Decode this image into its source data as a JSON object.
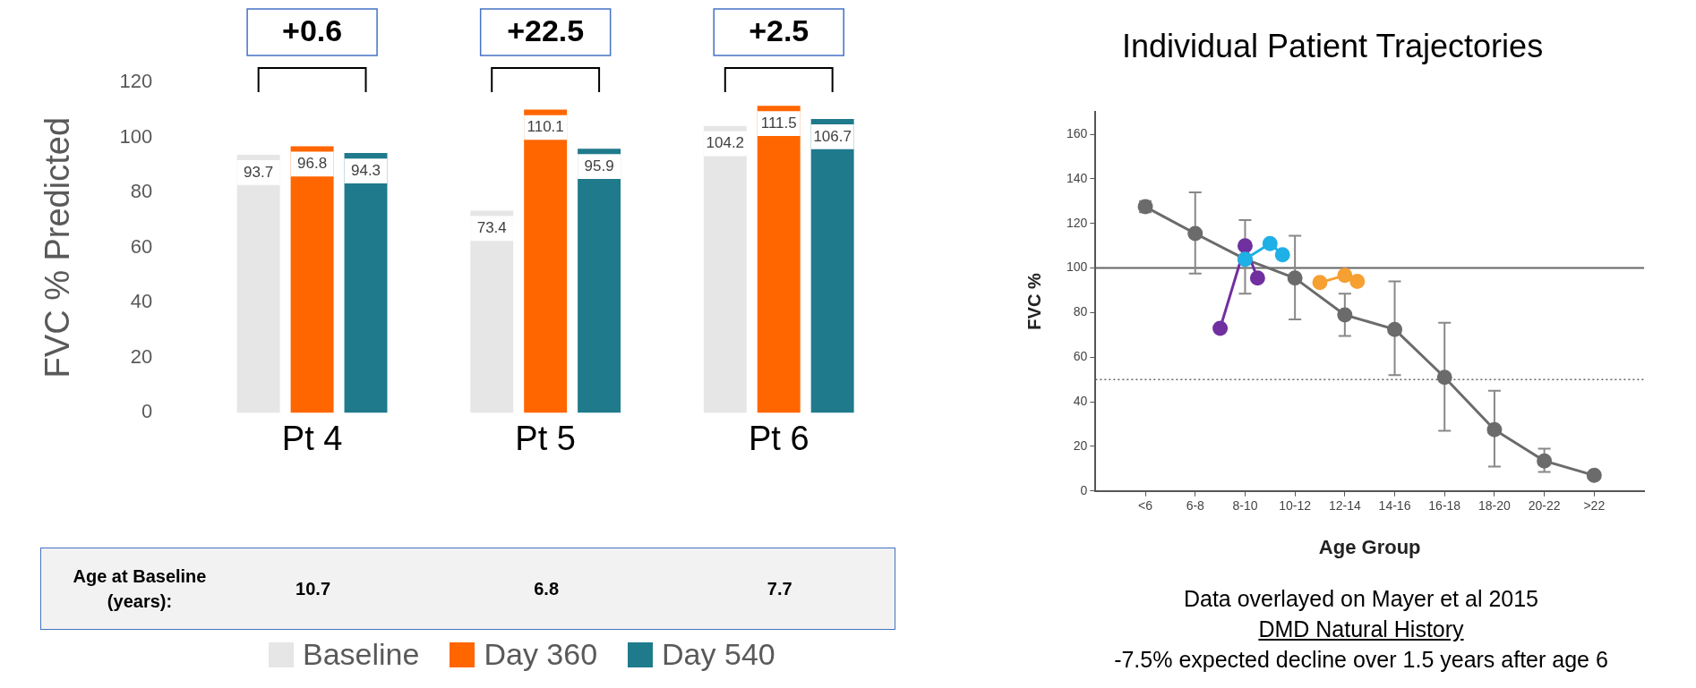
{
  "chart_data": [
    {
      "type": "bar",
      "ylabel": "FVC % Predicted",
      "categories": [
        "Pt 4",
        "Pt 5",
        "Pt 6"
      ],
      "series": [
        {
          "name": "Baseline",
          "color": "#e6e6e6",
          "values": [
            93.7,
            73.4,
            104.2
          ]
        },
        {
          "name": "Day 360",
          "color": "#ff6600",
          "values": [
            96.8,
            110.1,
            111.5
          ]
        },
        {
          "name": "Day 540",
          "color": "#1f7a8c",
          "values": [
            94.3,
            95.9,
            106.7
          ]
        }
      ],
      "ylim": [
        0,
        120
      ],
      "yticks": [
        0,
        20,
        40,
        60,
        80,
        100,
        120
      ],
      "grid": false,
      "legend": "bottom",
      "data_labels": true,
      "annotations": [
        "+0.6",
        "+22.5",
        "+2.5",
        "Age at Baseline (years):",
        "10.7",
        "6.8",
        "7.7"
      ]
    },
    {
      "type": "line",
      "title": "Individual Patient Trajectories",
      "xlabel": "Age Group",
      "ylabel": "FVC %",
      "categories": [
        null,
        null,
        null,
        null,
        "<6",
        null,
        null,
        null,
        "6-8",
        null,
        null,
        null,
        "8-10",
        null,
        null,
        null,
        "10-12",
        null,
        null,
        null,
        "12-14",
        null,
        null,
        null,
        "14-16",
        null,
        null,
        null,
        "16-18",
        null,
        null,
        null,
        "18-20",
        null,
        null,
        null,
        "20-22",
        null,
        null,
        null,
        ">22",
        null,
        null,
        null,
        null
      ],
      "series": [
        {
          "color": "#6b6b6b",
          "values": [
            null,
            null,
            null,
            null,
            127.5,
            null,
            null,
            null,
            115.5,
            null,
            null,
            null,
            104,
            null,
            null,
            null,
            95.5,
            null,
            null,
            null,
            79,
            null,
            null,
            null,
            72.5,
            null,
            null,
            null,
            51,
            null,
            null,
            null,
            27.5,
            null,
            null,
            null,
            13.5,
            null,
            null,
            null,
            7,
            null,
            null,
            null,
            null
          ],
          "errors": [
            null,
            null,
            null,
            null,
            [
              125,
              130
            ],
            null,
            null,
            null,
            [
              97.5,
              134
            ],
            null,
            null,
            null,
            [
              88.5,
              121.5
            ],
            null,
            null,
            null,
            [
              77,
              114.5
            ],
            null,
            null,
            null,
            [
              69.5,
              88.5
            ],
            null,
            null,
            null,
            [
              52,
              94
            ],
            null,
            null,
            null,
            [
              27,
              75.5
            ],
            null,
            null,
            null,
            [
              11,
              45
            ],
            null,
            null,
            null,
            [
              8.5,
              19
            ],
            null,
            null,
            null,
            null,
            null,
            null,
            null,
            null
          ]
        },
        {
          "color": "#7030a0",
          "values": [
            null,
            null,
            null,
            null,
            null,
            null,
            null,
            null,
            null,
            null,
            73,
            null,
            110,
            95.5,
            null,
            null,
            null,
            null,
            null,
            null,
            null,
            null,
            null,
            null,
            null,
            null,
            null,
            null,
            null,
            null,
            null,
            null,
            null,
            null,
            null,
            null,
            null,
            null,
            null,
            null,
            null,
            null,
            null,
            null,
            null
          ]
        },
        {
          "color": "#1fb0e6",
          "values": [
            null,
            null,
            null,
            null,
            null,
            null,
            null,
            null,
            null,
            null,
            null,
            null,
            104,
            null,
            111,
            106,
            null,
            null,
            null,
            null,
            null,
            null,
            null,
            null,
            null,
            null,
            null,
            null,
            null,
            null,
            null,
            null,
            null,
            null,
            null,
            null,
            null,
            null,
            null,
            null,
            null,
            null,
            null,
            null,
            null
          ]
        },
        {
          "color": "#f5a031",
          "values": [
            null,
            null,
            null,
            null,
            null,
            null,
            null,
            null,
            null,
            null,
            null,
            null,
            null,
            null,
            null,
            null,
            null,
            null,
            93.5,
            null,
            96.7,
            94,
            null,
            null,
            null,
            null,
            null,
            null,
            null,
            null,
            null,
            null,
            null,
            null,
            null,
            null,
            null,
            null,
            null,
            null,
            null,
            null,
            null,
            null,
            null
          ]
        }
      ],
      "ylim": [
        0,
        170
      ],
      "yticks": [
        0,
        20,
        40,
        60,
        80,
        100,
        120,
        140,
        160
      ],
      "grid": false,
      "legend": false,
      "marker": "circle",
      "line_style": "solid",
      "ref_lines": [
        {
          "axis": "y",
          "value": 100,
          "line_style": "solid"
        },
        {
          "axis": "y",
          "value": 50,
          "line_style": "dotted"
        }
      ],
      "annotations": [
        "Data overlayed on Mayer et al 2015",
        "DMD Natural History",
        "-7.5% expected decline over 1.5 years after age 6"
      ]
    }
  ]
}
